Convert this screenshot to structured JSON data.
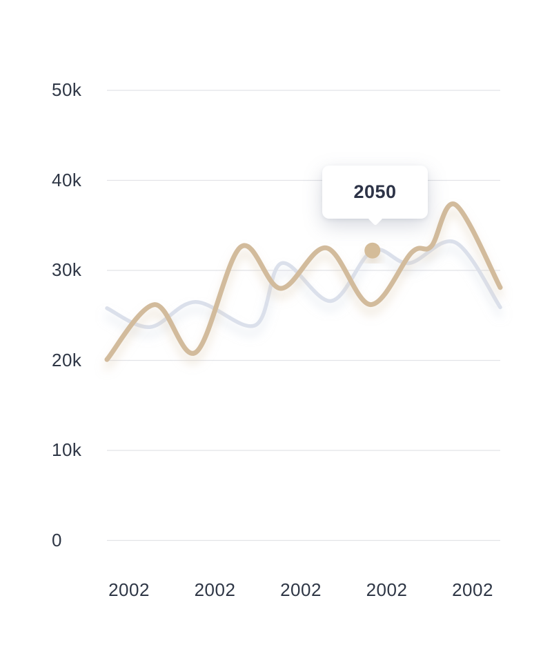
{
  "chart_data": {
    "type": "line",
    "title": "",
    "x_tick_labels": [
      "2002",
      "2002",
      "2002",
      "2002",
      "2002"
    ],
    "y_axis": {
      "tick_labels": [
        "50k",
        "40k",
        "30k",
        "20k",
        "10k",
        "0"
      ],
      "tick_values": [
        50000,
        40000,
        30000,
        20000,
        10000,
        0
      ],
      "lim": [
        0,
        50000
      ]
    },
    "grid": "horizontal-only",
    "legend": "none",
    "series": [
      {
        "name": "muted-series",
        "color": "#dbe0eb",
        "stroke_width": 5.5,
        "shadow_color": "#ccd3e2",
        "points": [
          {
            "x": 0.0,
            "v": 25800
          },
          {
            "x": 0.109,
            "v": 23700
          },
          {
            "x": 0.225,
            "v": 26500
          },
          {
            "x": 0.377,
            "v": 23900
          },
          {
            "x": 0.444,
            "v": 30800
          },
          {
            "x": 0.57,
            "v": 26600
          },
          {
            "x": 0.675,
            "v": 32200
          },
          {
            "x": 0.768,
            "v": 30800
          },
          {
            "x": 0.886,
            "v": 33100
          },
          {
            "x": 1.0,
            "v": 25900
          }
        ]
      },
      {
        "name": "accent-series",
        "color": "#d2bb9c",
        "stroke_width": 7,
        "shadow_color": "#d8c4a8",
        "points": [
          {
            "x": 0.0,
            "v": 20100
          },
          {
            "x": 0.121,
            "v": 26200
          },
          {
            "x": 0.226,
            "v": 20900
          },
          {
            "x": 0.34,
            "v": 32600
          },
          {
            "x": 0.442,
            "v": 28000
          },
          {
            "x": 0.558,
            "v": 32500
          },
          {
            "x": 0.67,
            "v": 26200
          },
          {
            "x": 0.775,
            "v": 32000
          },
          {
            "x": 0.825,
            "v": 32700
          },
          {
            "x": 0.886,
            "v": 37300
          },
          {
            "x": 1.0,
            "v": 28100
          }
        ]
      }
    ],
    "highlight": {
      "series": "muted-series",
      "x": 0.675,
      "v": 32200,
      "dot_color": "#d4bc99",
      "tooltip_label": "2050"
    }
  },
  "tooltip": {
    "label": "2050"
  },
  "colors": {
    "background": "#ffffff",
    "grid_line": "#e2e3e7",
    "axis_label": "#2e3645",
    "tooltip_text": "#2d3347",
    "tooltip_bg": "#ffffff"
  }
}
